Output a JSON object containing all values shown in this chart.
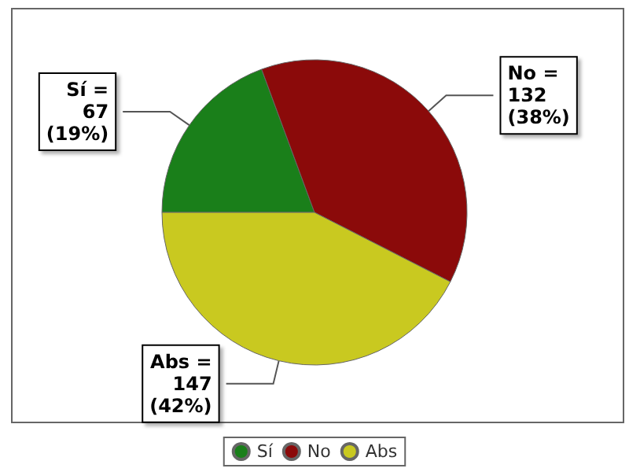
{
  "chart_data": {
    "type": "pie",
    "categories": [
      "Sí",
      "No",
      "Abs"
    ],
    "values": [
      67,
      132,
      147
    ],
    "colors": [
      "#1a7f1a",
      "#8b0a0a",
      "#c9c920"
    ],
    "value_labels": [
      "Sí =\n67\n(19%)",
      "No =\n132\n(38%)",
      "Abs =\n147\n(42%)"
    ],
    "legend": "bottom"
  }
}
